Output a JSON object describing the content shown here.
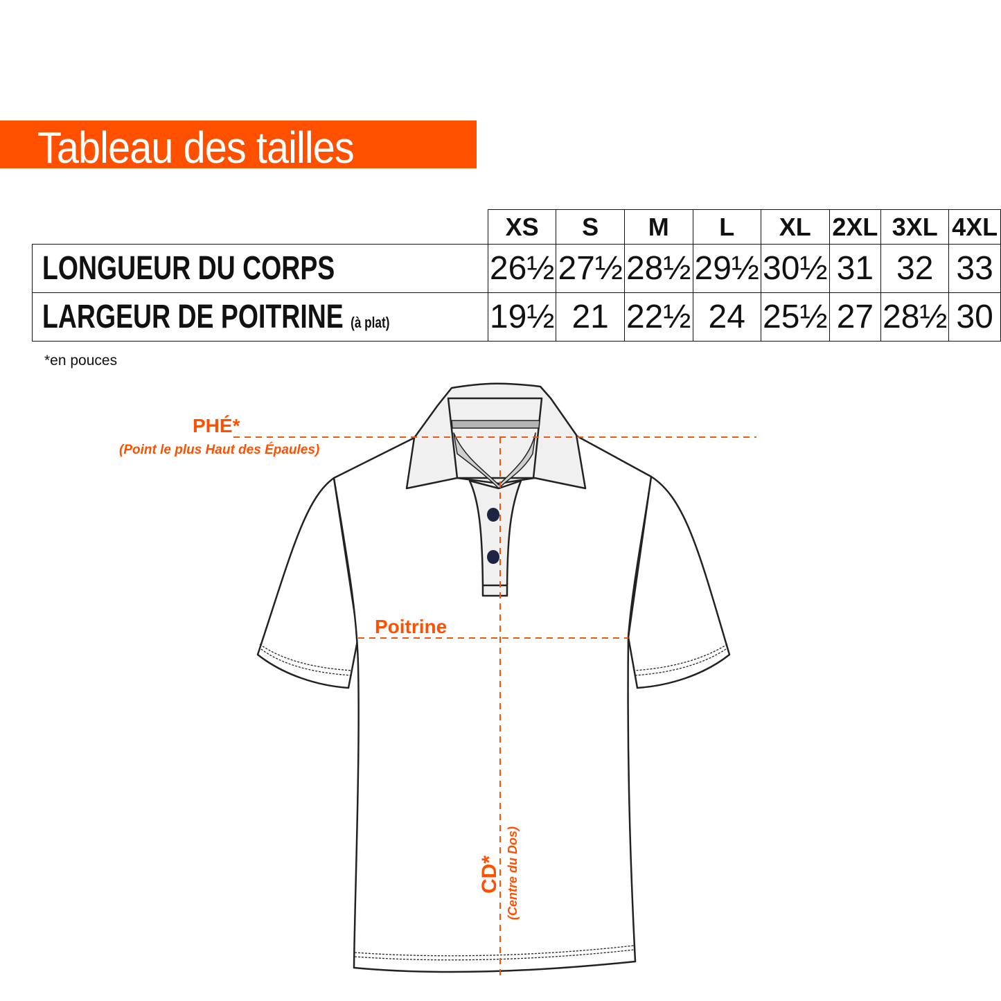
{
  "title": "Tableau des tailles",
  "size_table": {
    "sizes": [
      "XS",
      "S",
      "M",
      "L",
      "XL",
      "2XL",
      "3XL",
      "4XL"
    ],
    "rows": [
      {
        "label": "LONGUEUR DU CORPS",
        "label_note": "",
        "values": [
          "26½",
          "27½",
          "28½",
          "29½",
          "30½",
          "31",
          "32",
          "33"
        ]
      },
      {
        "label": "LARGEUR DE POITRINE",
        "label_note": "(à plat)",
        "values": [
          "19½",
          "21",
          "22½",
          "24",
          "25½",
          "27",
          "28½",
          "30"
        ]
      }
    ]
  },
  "unit_note": "*en pouces",
  "diagram": {
    "hps_label": "PHÉ*",
    "hps_desc": "(Point le plus Haut des Épaules)",
    "chest_label": "Poitrine",
    "cb_label": "CD*",
    "cb_desc": "(Centre du Dos)"
  },
  "colors": {
    "accent": "#ff5000",
    "button": "#1e2540"
  }
}
